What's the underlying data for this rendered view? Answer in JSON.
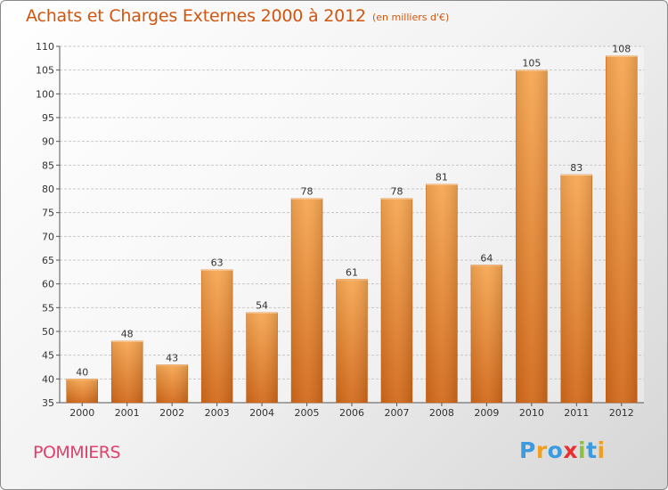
{
  "title": "Achats et Charges Externes 2000 à 2012",
  "subtitle": "(en milliers d'€)",
  "commune": "POMMIERS",
  "logo": {
    "letters": [
      "P",
      "r",
      "o",
      "x",
      "i",
      "t",
      "i"
    ],
    "colors": [
      "#3a9be0",
      "#f0a020",
      "#3a9be0",
      "#e83030",
      "#8cc040",
      "#3a9be0",
      "#f0a020"
    ]
  },
  "colors": {
    "bar_top": "#f7a752",
    "bar_bottom": "#d2691a",
    "accent": "#d2550f"
  },
  "chart_data": {
    "type": "bar",
    "categories": [
      "2000",
      "2001",
      "2002",
      "2003",
      "2004",
      "2005",
      "2006",
      "2007",
      "2008",
      "2009",
      "2010",
      "2011",
      "2012"
    ],
    "values": [
      40,
      48,
      43,
      63,
      54,
      78,
      61,
      78,
      81,
      64,
      105,
      83,
      108
    ],
    "ylim": [
      35,
      110
    ],
    "yticks": [
      35,
      40,
      45,
      50,
      55,
      60,
      65,
      70,
      75,
      80,
      85,
      90,
      95,
      100,
      105,
      110
    ],
    "grid": true,
    "data_labels": true
  }
}
